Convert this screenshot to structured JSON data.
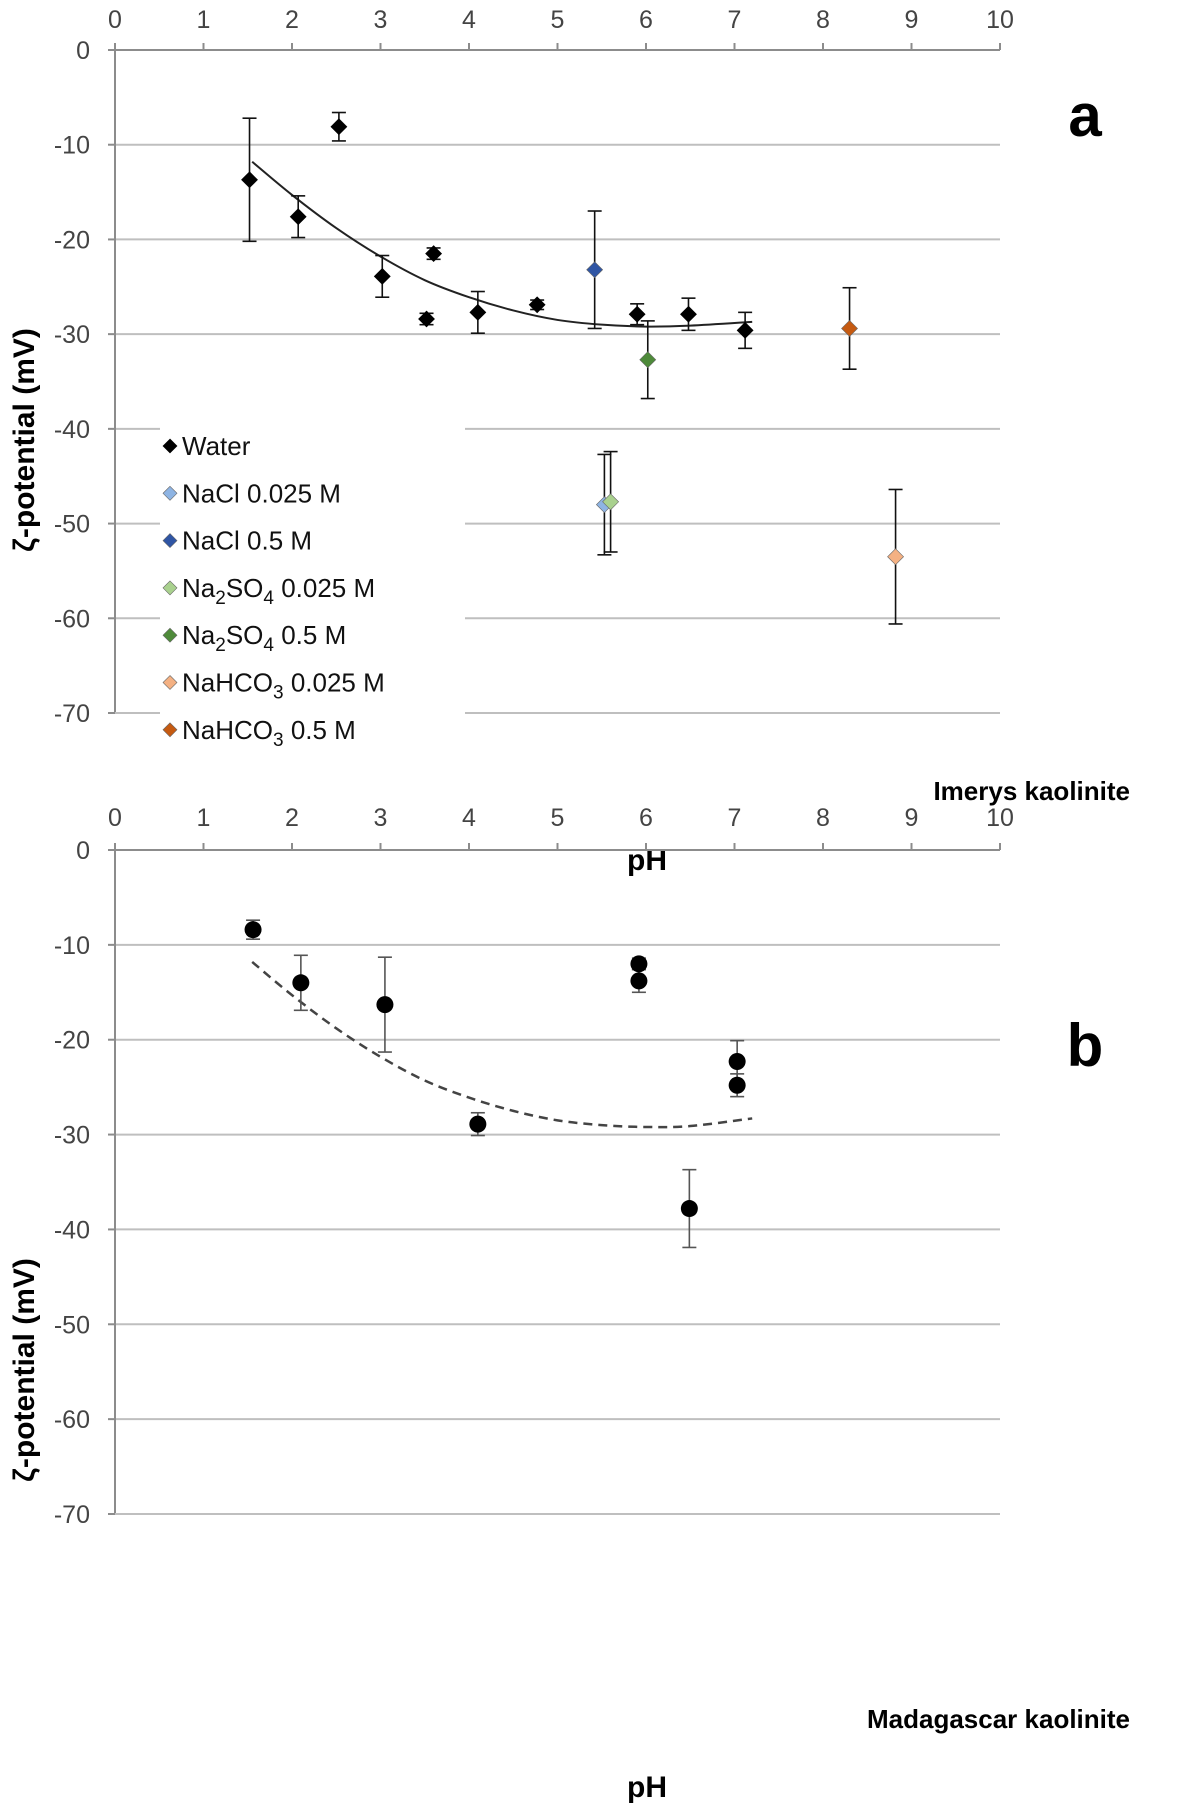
{
  "chart_data": [
    {
      "type": "scatter",
      "panel_label": "a",
      "sample_label": "Imerys kaolinite",
      "xlabel": "pH",
      "ylabel": "ζ-potential (mV)",
      "xlim": [
        0,
        10
      ],
      "ylim": [
        -70,
        0
      ],
      "x_ticks": [
        0,
        1,
        2,
        3,
        4,
        5,
        6,
        7,
        8,
        9,
        10
      ],
      "y_ticks": [
        0,
        -10,
        -20,
        -30,
        -40,
        -50,
        -60,
        -70
      ],
      "grid": "horizontal",
      "x_axis_position": "top",
      "legend_position": "left",
      "series": [
        {
          "name": "Water",
          "color": "#000000",
          "marker": "diamond",
          "points": [
            {
              "x": 1.52,
              "y": -13.7,
              "err": 6.5
            },
            {
              "x": 2.07,
              "y": -17.6,
              "err": 2.2
            },
            {
              "x": 2.53,
              "y": -8.1,
              "err": 1.5
            },
            {
              "x": 3.02,
              "y": -23.9,
              "err": 2.2
            },
            {
              "x": 3.52,
              "y": -28.4,
              "err": 0.6
            },
            {
              "x": 3.6,
              "y": -21.5,
              "err": 0.6
            },
            {
              "x": 4.1,
              "y": -27.7,
              "err": 2.2
            },
            {
              "x": 4.77,
              "y": -26.9,
              "err": 0.5
            },
            {
              "x": 5.9,
              "y": -27.9,
              "err": 1.1
            },
            {
              "x": 6.48,
              "y": -27.9,
              "err": 1.7
            },
            {
              "x": 7.12,
              "y": -29.6,
              "err": 1.9
            }
          ]
        },
        {
          "name": "NaCl 0.025 M",
          "color": "#8eb4e3",
          "marker": "diamond",
          "points": [
            {
              "x": 5.53,
              "y": -48.0,
              "err": 5.3
            }
          ]
        },
        {
          "name": "NaCl 0.5 M",
          "color": "#2f55a4",
          "marker": "diamond",
          "points": [
            {
              "x": 5.42,
              "y": -23.2,
              "err": 6.2
            }
          ]
        },
        {
          "name": "Na2SO4 0.025 M",
          "color": "#a9d18e",
          "marker": "diamond",
          "points": [
            {
              "x": 5.6,
              "y": -47.7,
              "err": 5.3
            }
          ]
        },
        {
          "name": "Na2SO4 0.5 M",
          "color": "#4e8a3a",
          "marker": "diamond",
          "points": [
            {
              "x": 6.02,
              "y": -32.7,
              "err": 4.1
            }
          ]
        },
        {
          "name": "NaHCO3 0.025 M",
          "color": "#f4b183",
          "marker": "diamond",
          "points": [
            {
              "x": 8.82,
              "y": -53.5,
              "err": 7.1
            }
          ]
        },
        {
          "name": "NaHCO3 0.5 M",
          "color": "#c55a11",
          "marker": "diamond",
          "points": [
            {
              "x": 8.3,
              "y": -29.4,
              "err": 4.3
            }
          ]
        }
      ],
      "trendline": {
        "style": "solid",
        "x": [
          1.55,
          2.0,
          2.5,
          3.0,
          3.5,
          4.0,
          4.5,
          5.0,
          5.5,
          6.0,
          6.5,
          7.2
        ],
        "y": [
          -11.8,
          -15.3,
          -18.8,
          -21.8,
          -24.3,
          -26.1,
          -27.5,
          -28.5,
          -29.0,
          -29.2,
          -29.1,
          -28.7
        ]
      }
    },
    {
      "type": "scatter",
      "panel_label": "b",
      "sample_label": "Madagascar kaolinite",
      "xlabel": "pH",
      "ylabel": "ζ-potential (mV)",
      "xlim": [
        0,
        10
      ],
      "ylim": [
        -70,
        0
      ],
      "x_ticks": [
        0,
        1,
        2,
        3,
        4,
        5,
        6,
        7,
        8,
        9,
        10
      ],
      "y_ticks": [
        0,
        -10,
        -20,
        -30,
        -40,
        -50,
        -60,
        -70
      ],
      "grid": "horizontal",
      "x_axis_position": "top",
      "series": [
        {
          "color": "#000000",
          "marker": "circle",
          "points": [
            {
              "x": 1.56,
              "y": -8.4,
              "err": 1.0
            },
            {
              "x": 2.1,
              "y": -14.0,
              "err": 2.9
            },
            {
              "x": 3.05,
              "y": -16.3,
              "err": 5.0
            },
            {
              "x": 4.1,
              "y": -28.9,
              "err": 1.2
            },
            {
              "x": 5.92,
              "y": -12.0,
              "err": 0.6
            },
            {
              "x": 5.92,
              "y": -13.8,
              "err": 1.2
            },
            {
              "x": 6.49,
              "y": -37.8,
              "err": 4.1
            },
            {
              "x": 7.03,
              "y": -22.3,
              "err": 2.2
            },
            {
              "x": 7.03,
              "y": -24.8,
              "err": 1.2
            }
          ]
        }
      ],
      "trendline": {
        "style": "dashed",
        "x": [
          1.55,
          2.0,
          2.5,
          3.0,
          3.5,
          4.0,
          4.5,
          5.0,
          5.5,
          6.0,
          6.5,
          7.2
        ],
        "y": [
          -11.8,
          -15.3,
          -18.8,
          -21.8,
          -24.3,
          -26.1,
          -27.5,
          -28.5,
          -29.0,
          -29.2,
          -29.1,
          -28.3
        ]
      }
    }
  ]
}
